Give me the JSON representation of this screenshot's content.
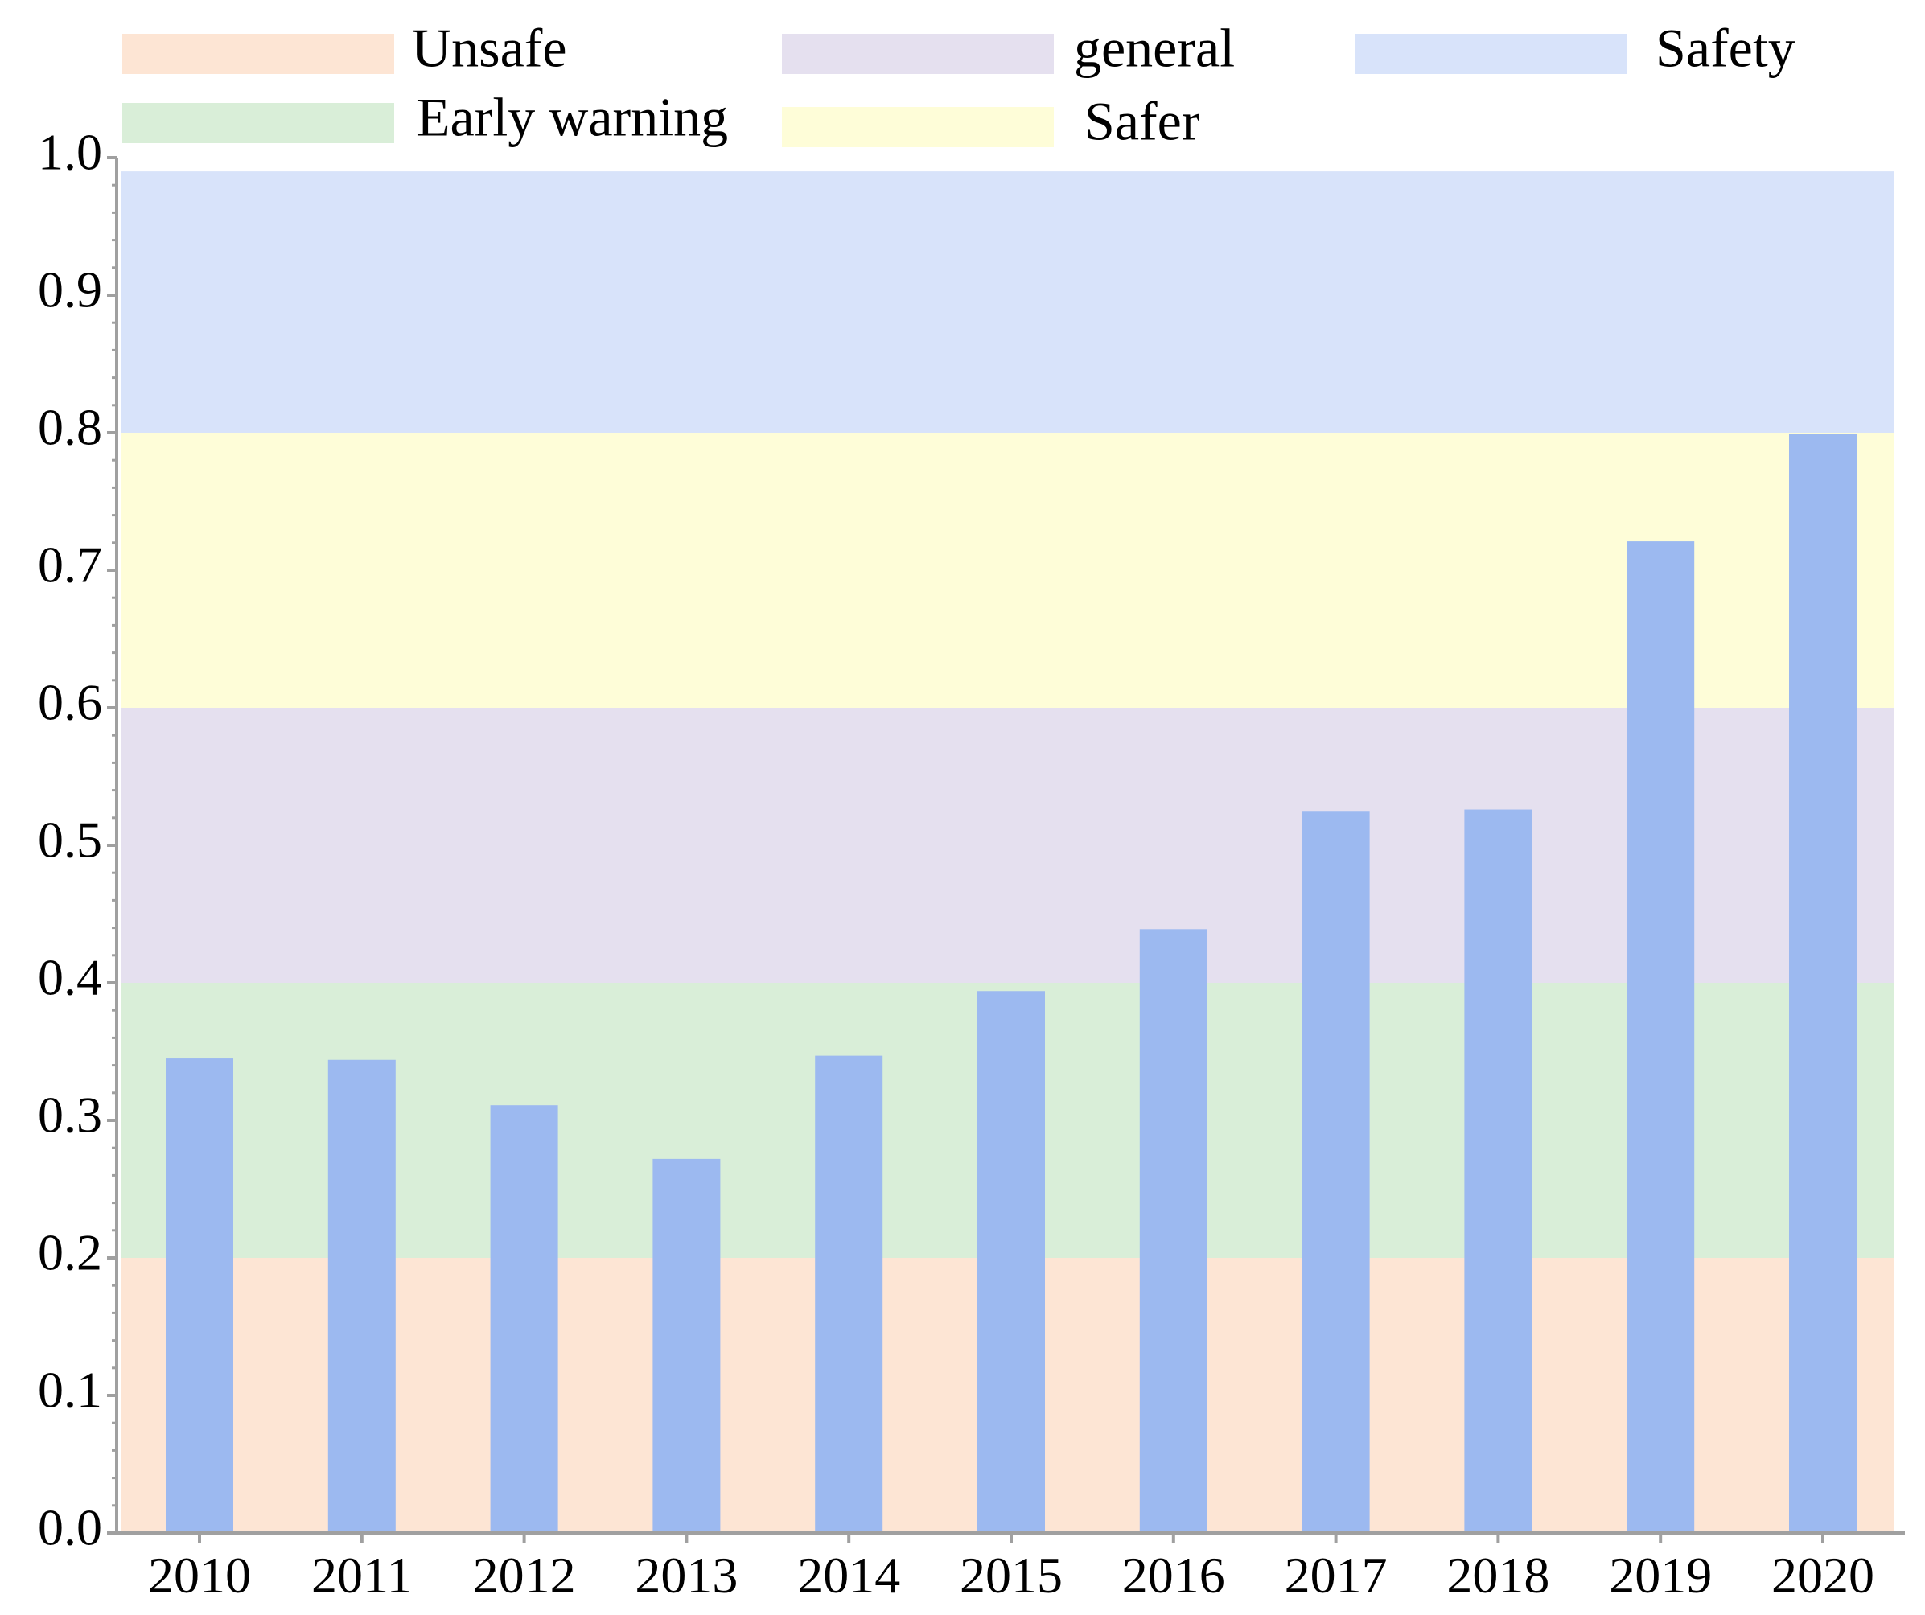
{
  "chart_data": {
    "type": "bar",
    "title": "",
    "xlabel": "",
    "ylabel": "",
    "categories": [
      "2010",
      "2011",
      "2012",
      "2013",
      "2014",
      "2015",
      "2016",
      "2017",
      "2018",
      "2019",
      "2020"
    ],
    "series": [
      {
        "values": [
          0.345,
          0.344,
          0.311,
          0.272,
          0.347,
          0.394,
          0.439,
          0.525,
          0.526,
          0.721,
          0.799
        ],
        "color": "#9cb9f0"
      }
    ],
    "ylim": [
      0,
      1.0
    ],
    "yticks": [
      "0.0",
      "0.1",
      "0.2",
      "0.3",
      "0.4",
      "0.5",
      "0.6",
      "0.7",
      "0.8",
      "0.9",
      "1.0"
    ],
    "grid": false,
    "legend_position": "top",
    "bands": [
      {
        "label": "Unsafe",
        "from": 0.0,
        "to": 0.2,
        "color": "#fde5d4"
      },
      {
        "label": "Early warning",
        "from": 0.2,
        "to": 0.4,
        "color": "#d9eed8"
      },
      {
        "label": "general",
        "from": 0.4,
        "to": 0.6,
        "color": "#e5e0ef"
      },
      {
        "label": "Safer",
        "from": 0.6,
        "to": 0.8,
        "color": "#fefdd8"
      },
      {
        "label": "Safety",
        "from": 0.8,
        "to": 0.99,
        "color": "#d8e3fa"
      }
    ],
    "legend_order": [
      "Unsafe",
      "general",
      "Safety",
      "Early warning",
      "Safer"
    ]
  }
}
